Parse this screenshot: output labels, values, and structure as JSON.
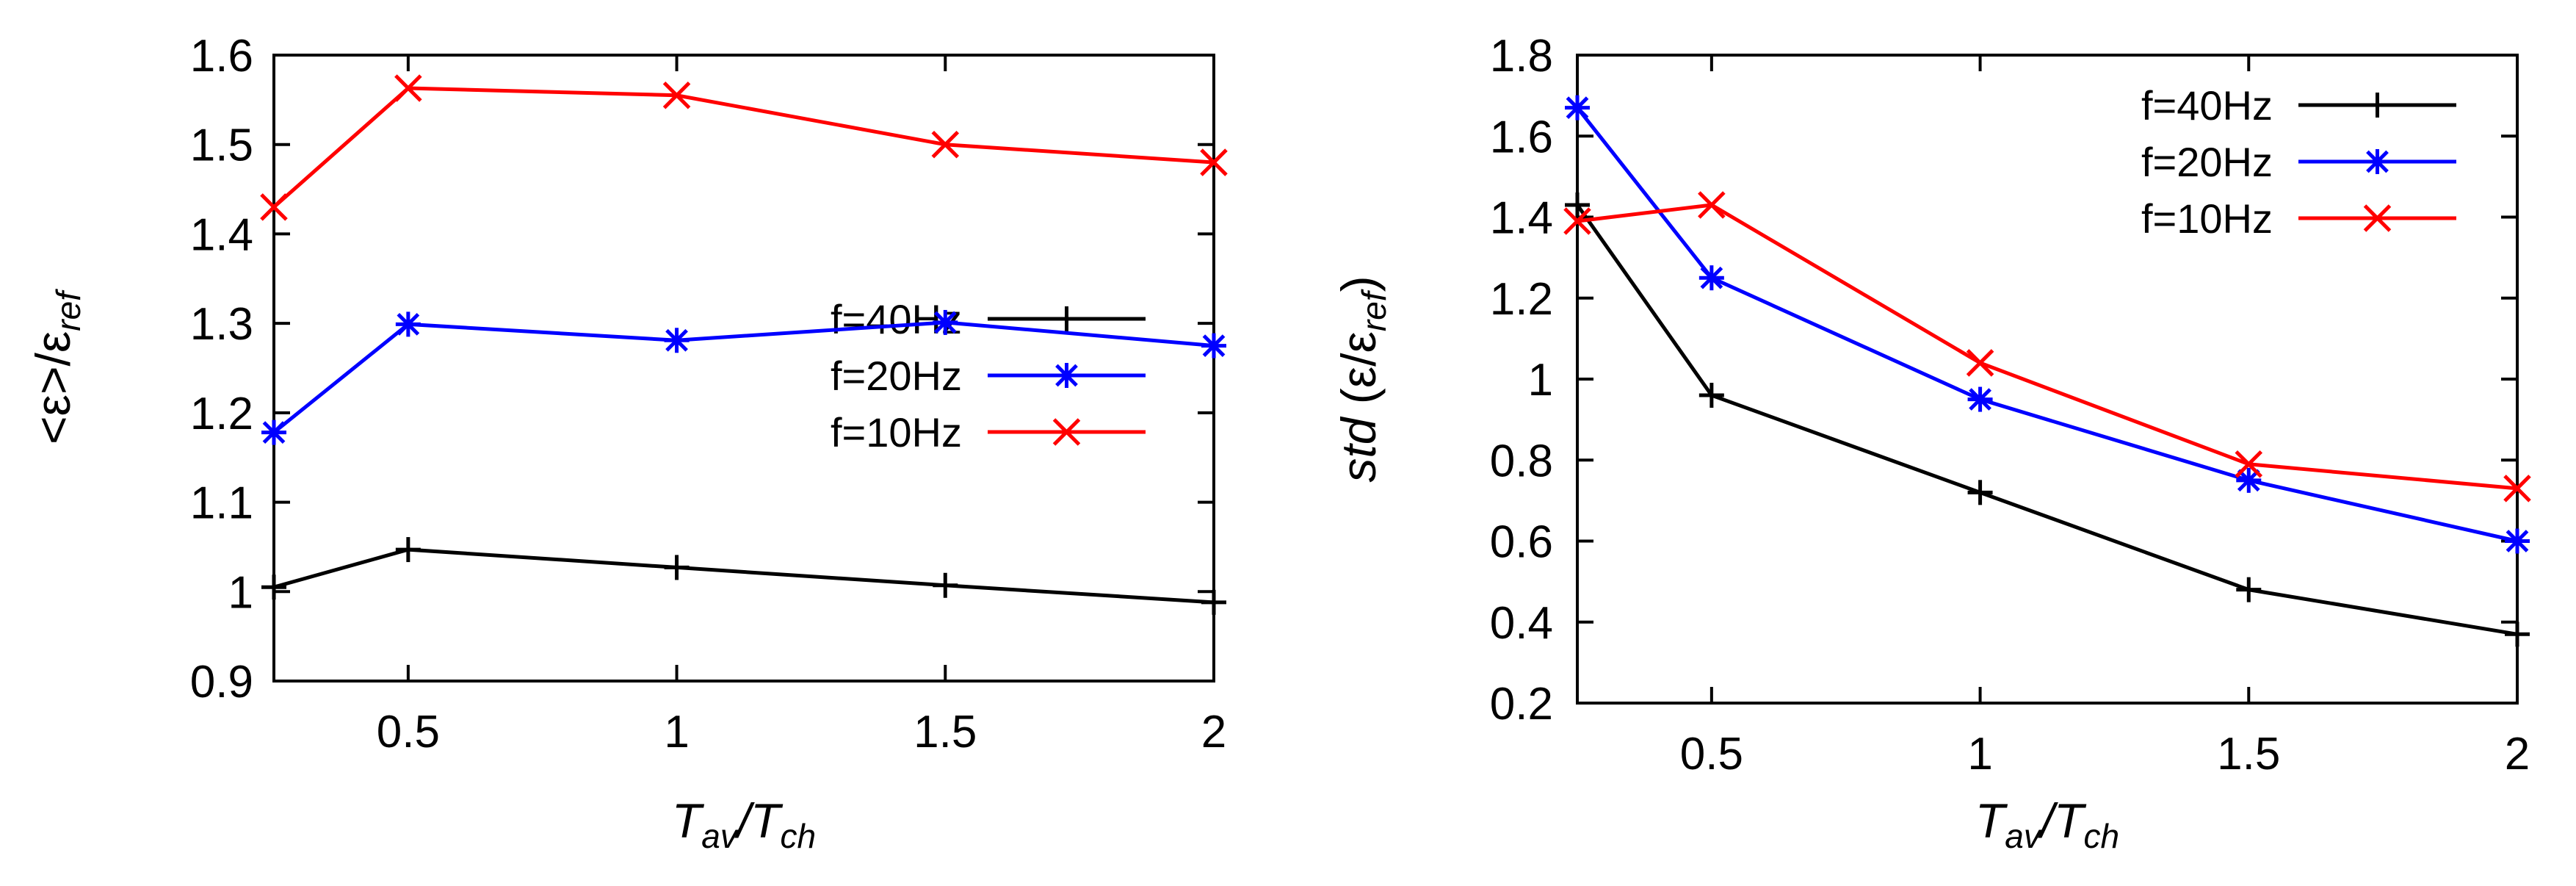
{
  "chart_data": [
    {
      "type": "line",
      "x": [
        0.25,
        0.5,
        1,
        1.5,
        2
      ],
      "xlim": [
        0.25,
        2
      ],
      "ylim": [
        0.9,
        1.6
      ],
      "xticks": [
        "0.5",
        "1",
        "1.5",
        "2"
      ],
      "yticks": [
        "0.9",
        "1",
        "1.1",
        "1.2",
        "1.3",
        "1.4",
        "1.5",
        "1.6"
      ],
      "xlabel": "T_av/T_ch",
      "ylabel": "<ε>/ε_ref",
      "legend_position": "center-right",
      "grid": false,
      "series": [
        {
          "name": "f=40Hz",
          "color": "#000000",
          "marker": "plus",
          "values": [
            1.005,
            1.047,
            1.027,
            1.007,
            0.988
          ]
        },
        {
          "name": "f=20Hz",
          "color": "#0000ff",
          "marker": "star",
          "values": [
            1.178,
            1.299,
            1.281,
            1.301,
            1.275
          ]
        },
        {
          "name": "f=10Hz",
          "color": "#ff0000",
          "marker": "cross",
          "values": [
            1.43,
            1.563,
            1.555,
            1.5,
            1.48
          ]
        }
      ]
    },
    {
      "type": "line",
      "x": [
        0.25,
        0.5,
        1,
        1.5,
        2
      ],
      "xlim": [
        0.25,
        2
      ],
      "ylim": [
        0.2,
        1.8
      ],
      "xticks": [
        "0.5",
        "1",
        "1.5",
        "2"
      ],
      "yticks": [
        "0.2",
        "0.4",
        "0.6",
        "0.8",
        "1",
        "1.2",
        "1.4",
        "1.6",
        "1.8"
      ],
      "xlabel": "T_av/T_ch",
      "ylabel": "std (ε/ε_ref)",
      "legend_position": "top-right",
      "grid": false,
      "series": [
        {
          "name": "f=40Hz",
          "color": "#000000",
          "marker": "plus",
          "values": [
            1.43,
            0.96,
            0.72,
            0.48,
            0.37
          ]
        },
        {
          "name": "f=20Hz",
          "color": "#0000ff",
          "marker": "star",
          "values": [
            1.67,
            1.25,
            0.95,
            0.75,
            0.6
          ]
        },
        {
          "name": "f=10Hz",
          "color": "#ff0000",
          "marker": "cross",
          "values": [
            1.39,
            1.43,
            1.04,
            0.79,
            0.73
          ]
        }
      ]
    }
  ]
}
